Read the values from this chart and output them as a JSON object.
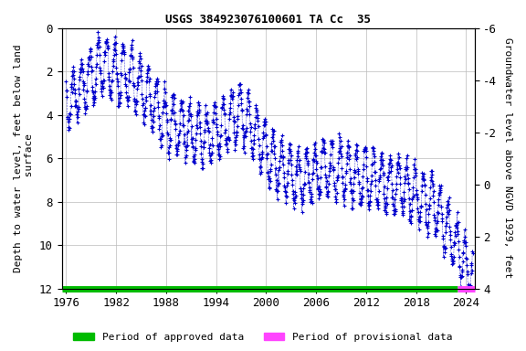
{
  "title": "USGS 384923076100601 TA Cc  35",
  "ylabel_left": "Depth to water level, feet below land\n surface",
  "ylabel_right": "Groundwater level above NGVD 1929, feet",
  "xlim": [
    1975.5,
    2025.0
  ],
  "ylim_left": [
    12,
    0
  ],
  "ylim_right": [
    6,
    -6
  ],
  "xticks": [
    1976,
    1982,
    1988,
    1994,
    2000,
    2006,
    2012,
    2018,
    2024
  ],
  "yticks_left": [
    0,
    2,
    4,
    6,
    8,
    10,
    12
  ],
  "yticks_right": [
    4,
    2,
    0,
    -2,
    -4,
    -6
  ],
  "dot_color": "#0000cc",
  "dot_marker": "+",
  "dot_size": 3.5,
  "line_color": "#0000cc",
  "legend_approved_color": "#00bb00",
  "legend_provisional_color": "#ff44ff",
  "background_color": "#ffffff",
  "grid_color": "#bbbbbb",
  "title_fontsize": 9,
  "axis_label_fontsize": 8,
  "tick_fontsize": 9,
  "font_family": "monospace",
  "approved_end_year": 2023.0,
  "provisional_end_year": 2025.0
}
